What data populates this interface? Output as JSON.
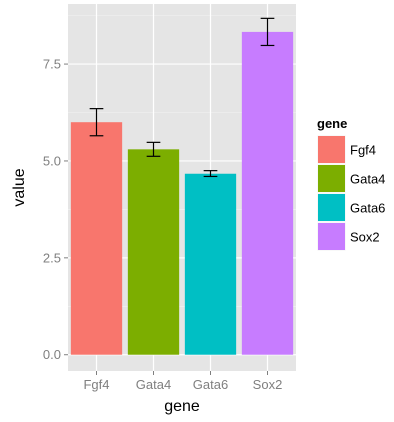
{
  "chart_data": {
    "type": "bar",
    "categories": [
      "Fgf4",
      "Gata4",
      "Gata6",
      "Sox2"
    ],
    "series": [
      {
        "values": [
          6.0,
          5.3,
          4.67,
          8.33
        ],
        "error_low": [
          5.65,
          5.12,
          4.6,
          7.98
        ],
        "error_high": [
          6.35,
          5.48,
          4.75,
          8.68
        ]
      }
    ],
    "colors": [
      "#F8766D",
      "#7CAE00",
      "#00BFC4",
      "#C77CFF"
    ],
    "panel_background": "#E5E5E5",
    "grid_color": "#FFFFFF",
    "grid": true,
    "xlabel": "gene",
    "ylabel": "value",
    "ylim": [
      -0.42,
      9.05
    ],
    "yticks": [
      0.0,
      2.5,
      5.0,
      7.5
    ],
    "ytick_labels": [
      "0.0",
      "2.5",
      "5.0",
      "7.5"
    ],
    "legend": {
      "title": "gene",
      "placement": "right",
      "entries": [
        "Fgf4",
        "Gata4",
        "Gata6",
        "Sox2"
      ]
    }
  }
}
